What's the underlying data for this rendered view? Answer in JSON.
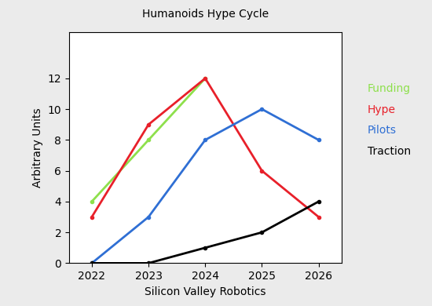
{
  "chart_data": {
    "type": "line",
    "title": "Humanoids Hype Cycle",
    "x_label": "Silicon Valley Robotics",
    "y_label": "Arbitrary Units",
    "x": [
      2022,
      2023,
      2024,
      2025,
      2026
    ],
    "series": [
      {
        "name": "Funding",
        "color": "#8ee04c",
        "values": [
          4,
          8,
          12,
          null,
          null
        ],
        "marker": "o"
      },
      {
        "name": "Hype",
        "color": "#e8202a",
        "values": [
          3,
          9,
          12,
          6,
          3
        ],
        "marker": "o"
      },
      {
        "name": "Pilots",
        "color": "#2f6fd4",
        "values": [
          0,
          3,
          8,
          10,
          8
        ],
        "marker": "o"
      },
      {
        "name": "Traction",
        "color": "#000000",
        "values": [
          0,
          0,
          1,
          2,
          4
        ],
        "marker": "o"
      }
    ],
    "xlim": [
      2021.6,
      2026.4
    ],
    "xticks": [
      2022,
      2023,
      2024,
      2025,
      2026
    ],
    "ylim": [
      0,
      15
    ],
    "yticks": [
      0,
      2,
      4,
      6,
      8,
      10,
      12
    ],
    "grid": false,
    "legend": "upper left"
  }
}
